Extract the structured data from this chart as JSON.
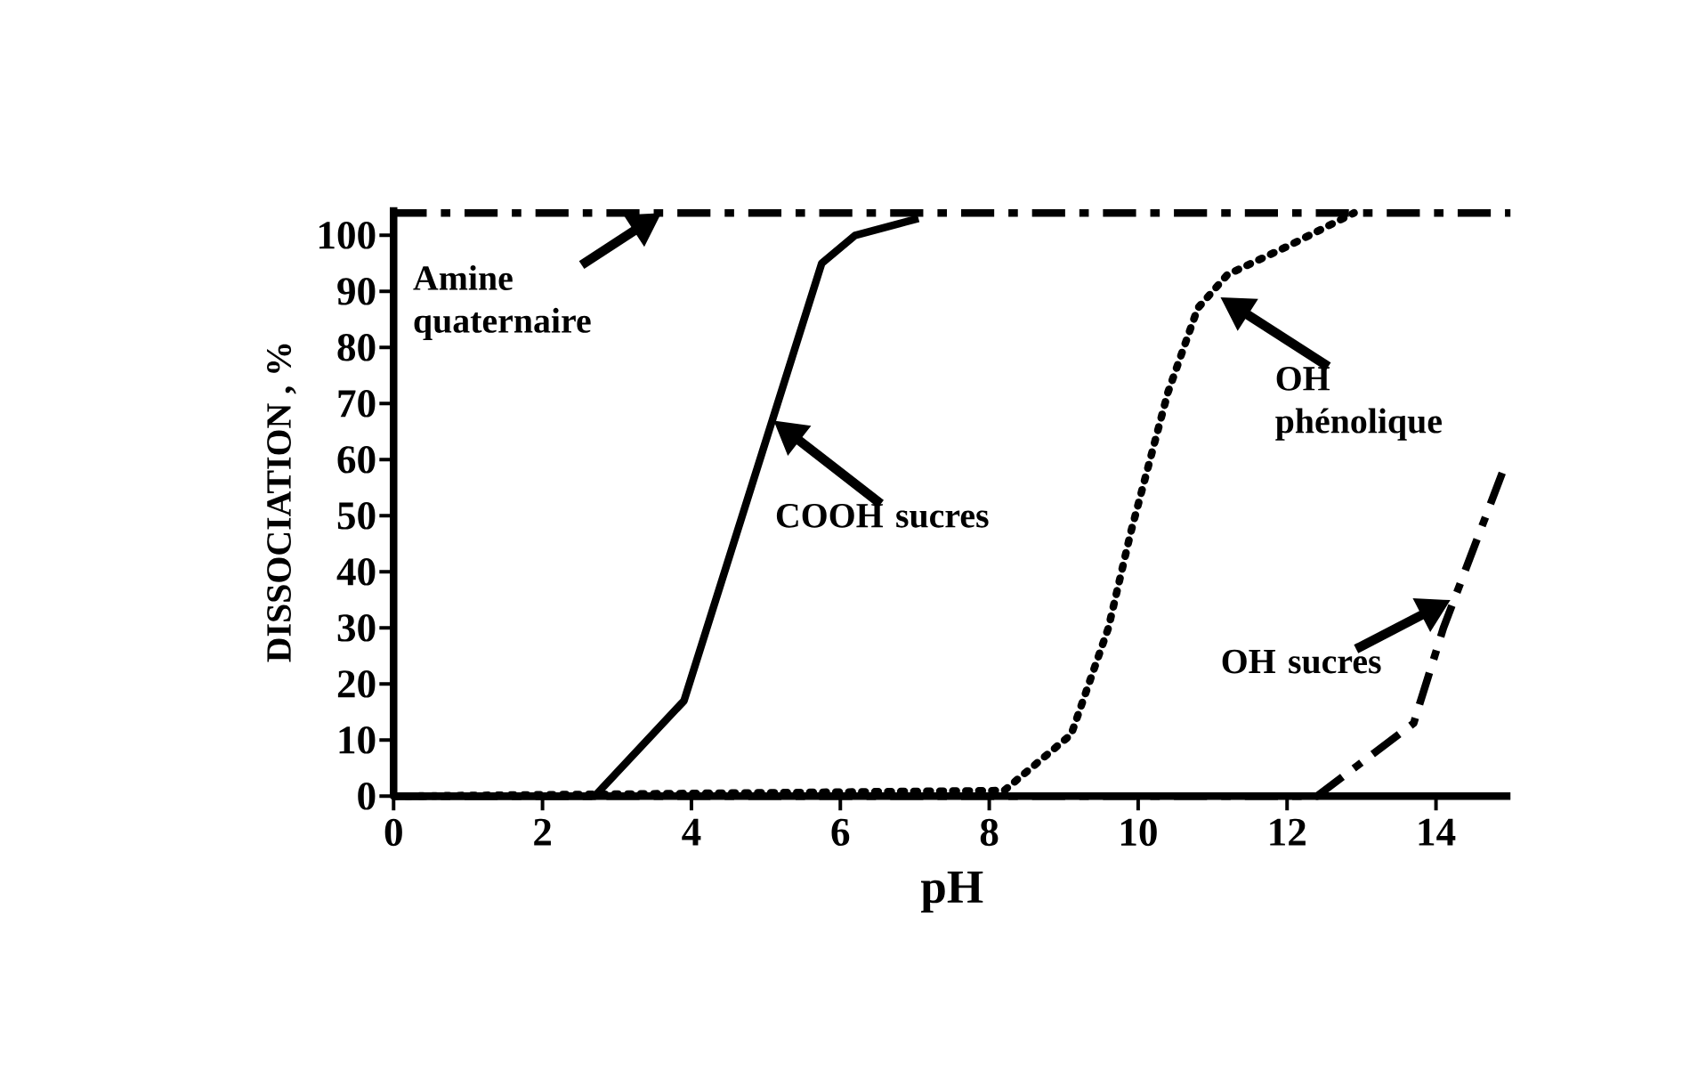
{
  "chart_data": {
    "type": "line",
    "xlabel": "pH",
    "ylabel": "DISSOCIATION , %",
    "xlim": [
      0,
      15
    ],
    "ylim": [
      0,
      105
    ],
    "xticks": [
      0,
      2,
      4,
      6,
      8,
      10,
      12,
      14
    ],
    "yticks": [
      0,
      10,
      20,
      30,
      40,
      50,
      60,
      70,
      80,
      90,
      100
    ],
    "grid": false,
    "marker": "none",
    "series": [
      {
        "color": "#000000",
        "line_style": "dashed",
        "x": [
          0,
          15
        ],
        "values": [
          104,
          104
        ]
      },
      {
        "color": "#000000",
        "line_style": "solid",
        "x": [
          0,
          2.7,
          3.9,
          5.75,
          6.2,
          7.05
        ],
        "values": [
          0,
          0,
          17,
          95,
          100,
          103
        ]
      },
      {
        "color": "#000000",
        "line_style": "dotted",
        "x": [
          0,
          8.2,
          9.1,
          9.6,
          9.9,
          10.4,
          10.8,
          11.2,
          12.0,
          12.9
        ],
        "values": [
          0,
          1,
          11,
          30,
          47,
          72,
          87,
          93,
          98,
          104
        ]
      },
      {
        "color": "#000000",
        "line_style": "dashed",
        "x": [
          0,
          12.4,
          13.7,
          14.1,
          14.9
        ],
        "values": [
          0,
          0,
          13,
          30,
          58
        ]
      }
    ],
    "annotations": [
      {
        "text": "Amine quaternaire",
        "x": 3.6,
        "y": 104
      },
      {
        "text": "COOH sucres",
        "x": 5.1,
        "y": 67
      },
      {
        "text": "OH phénolique",
        "x": 11.1,
        "y": 89
      },
      {
        "text": "OH sucres",
        "x": 14.2,
        "y": 35
      }
    ]
  }
}
